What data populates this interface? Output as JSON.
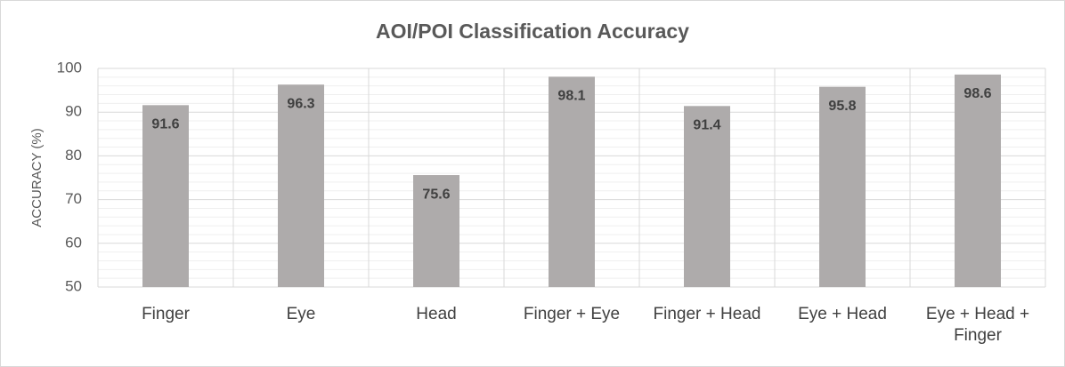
{
  "chart_data": {
    "type": "bar",
    "title": "AOI/POI Classification Accuracy",
    "y_label": "ACCURACY (%)",
    "categories": [
      "Finger",
      "Eye",
      "Head",
      "Finger + Eye",
      "Finger + Head",
      "Eye + Head",
      "Eye + Head + Finger"
    ],
    "values": [
      91.6,
      96.3,
      75.6,
      98.1,
      91.4,
      95.8,
      98.6
    ],
    "color": "#aeabab",
    "ylim": [
      50,
      100
    ],
    "yticks": [
      50,
      60,
      70,
      80,
      90,
      100
    ],
    "grid": true
  }
}
